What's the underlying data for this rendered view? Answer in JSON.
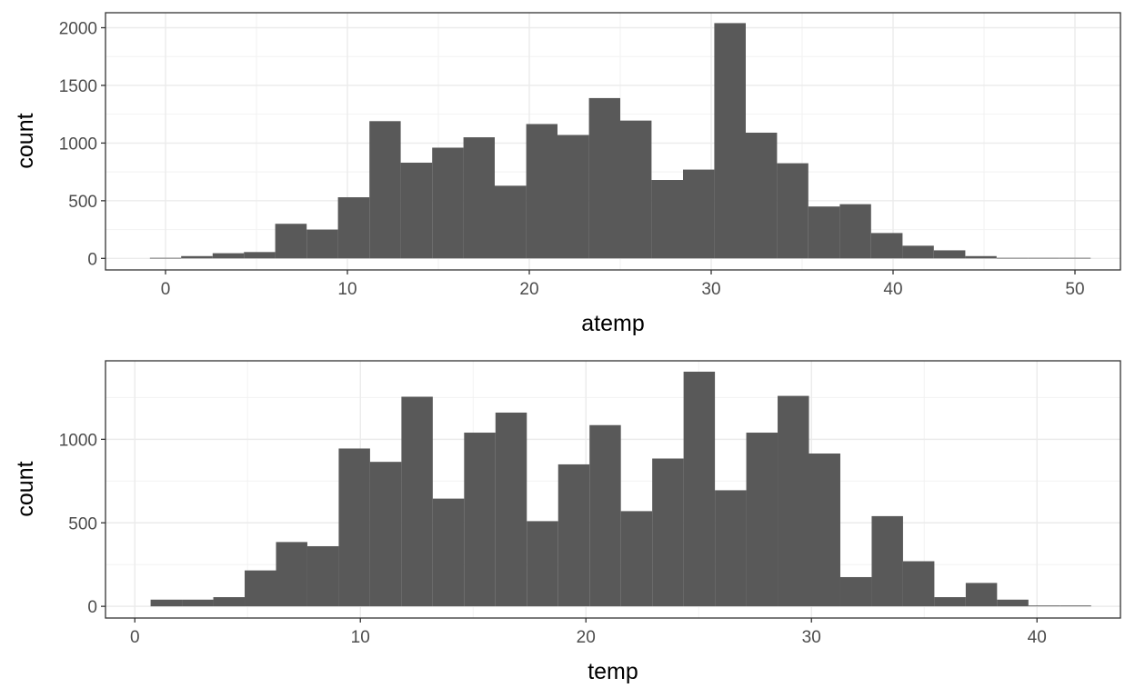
{
  "chart_data": [
    {
      "type": "bar",
      "title": "",
      "xlabel": "atemp",
      "ylabel": "count",
      "xlim": [
        -3.3,
        52.5
      ],
      "ylim": [
        -100,
        2130
      ],
      "x_ticks": [
        0,
        10,
        20,
        30,
        40,
        50
      ],
      "y_ticks": [
        0,
        500,
        1000,
        1500,
        2000
      ],
      "grid": true,
      "bar_color": "#595959",
      "bins": {
        "x_start": [
          -0.86,
          0.86,
          2.59,
          4.31,
          6.03,
          7.76,
          9.48,
          11.21,
          12.93,
          14.66,
          16.38,
          18.1,
          19.83,
          21.55,
          23.28,
          25.0,
          26.72,
          28.45,
          30.17,
          31.9,
          33.62,
          35.34,
          37.07,
          38.79,
          40.52,
          42.24,
          43.97,
          45.69,
          47.41,
          49.14
        ],
        "x_end": [
          0.86,
          2.59,
          4.31,
          6.03,
          7.76,
          9.48,
          11.21,
          12.93,
          14.66,
          16.38,
          18.1,
          19.83,
          21.55,
          23.28,
          25.0,
          26.72,
          28.45,
          30.17,
          31.9,
          33.62,
          35.34,
          37.07,
          38.79,
          40.52,
          42.24,
          43.97,
          45.69,
          47.41,
          49.14,
          50.86
        ],
        "counts": [
          5,
          20,
          45,
          55,
          300,
          250,
          530,
          1190,
          830,
          960,
          1050,
          630,
          1165,
          1070,
          1390,
          1195,
          680,
          770,
          2040,
          1090,
          825,
          450,
          470,
          220,
          110,
          70,
          20,
          5,
          5,
          5
        ]
      }
    },
    {
      "type": "bar",
      "title": "",
      "xlabel": "temp",
      "ylabel": "count",
      "xlim": [
        -1.3,
        43.7
      ],
      "ylim": [
        -70,
        1470
      ],
      "x_ticks": [
        0,
        10,
        20,
        30,
        40
      ],
      "y_ticks": [
        0,
        500,
        1000
      ],
      "grid": true,
      "bar_color": "#595959",
      "bins": {
        "x_start": [
          0.7,
          2.09,
          3.48,
          4.87,
          6.26,
          7.65,
          9.04,
          10.43,
          11.82,
          13.21,
          14.6,
          15.99,
          17.38,
          18.77,
          20.16,
          21.55,
          22.94,
          24.33,
          25.72,
          27.11,
          28.5,
          29.89,
          31.28,
          32.67,
          34.06,
          35.45,
          36.84,
          38.23,
          39.62,
          41.01
        ],
        "x_end": [
          2.09,
          3.48,
          4.87,
          6.26,
          7.65,
          9.04,
          10.43,
          11.82,
          13.21,
          14.6,
          15.99,
          17.38,
          18.77,
          20.16,
          21.55,
          22.94,
          24.33,
          25.72,
          27.11,
          28.5,
          29.89,
          31.28,
          32.67,
          34.06,
          35.45,
          36.84,
          38.23,
          39.62,
          41.01,
          42.4
        ],
        "counts": [
          40,
          40,
          55,
          215,
          385,
          360,
          945,
          865,
          1255,
          645,
          1040,
          1160,
          510,
          850,
          1085,
          570,
          885,
          1405,
          695,
          1040,
          1260,
          915,
          175,
          540,
          270,
          55,
          140,
          40,
          5,
          5
        ]
      }
    }
  ]
}
